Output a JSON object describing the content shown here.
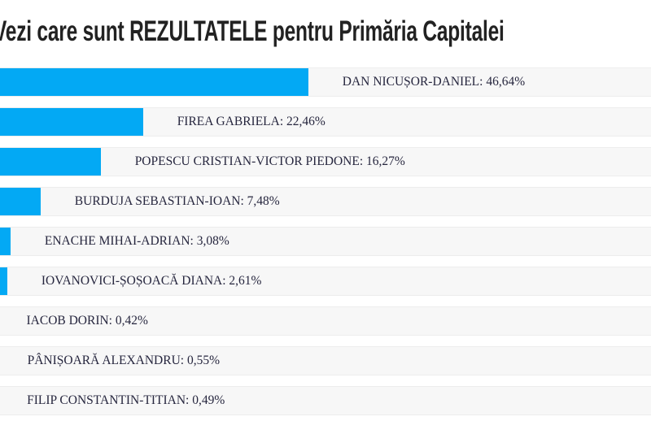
{
  "page": {
    "title": "Vezi care sunt REZULTATELE pentru Primăria Capitalei"
  },
  "chart_data": {
    "type": "bar",
    "orientation": "horizontal",
    "title": "Vezi care sunt REZULTATELE pentru Primăria Capitalei",
    "unit": "%",
    "grid": false,
    "legend": "none",
    "axes_visible": false,
    "xlim": [
      0,
      100
    ],
    "categories": [
      "DAN NICUȘOR-DANIEL",
      "FIREA GABRIELA",
      "POPESCU CRISTIAN-VICTOR PIEDONE",
      "BURDUJA SEBASTIAN-IOAN",
      "ENACHE MIHAI-ADRIAN",
      "IOVANOVICI-ȘOȘOACĂ DIANA",
      "IACOB DORIN",
      "PÂNIȘOARĂ ALEXANDRU",
      "FILIP CONSTANTIN-TITIAN"
    ],
    "values": [
      46.64,
      22.46,
      16.27,
      7.48,
      3.08,
      2.61,
      0.42,
      0.55,
      0.49
    ],
    "value_labels": [
      "46,64%",
      "22,46%",
      "16,27%",
      "7,48%",
      "3,08%",
      "2,61%",
      "0,42%",
      "0,55%",
      "0,49%"
    ],
    "label_separator": ": ",
    "colors": {
      "bar": "#03a9f4",
      "track": "#f7f7f7",
      "track_border": "#ededed",
      "label_text": "#26263e",
      "title_text": "#222222",
      "background": "#ffffff"
    }
  }
}
